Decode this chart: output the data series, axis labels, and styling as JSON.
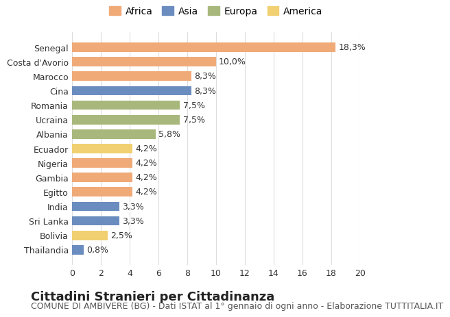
{
  "categories": [
    "Senegal",
    "Costa d'Avorio",
    "Marocco",
    "Cina",
    "Romania",
    "Ucraina",
    "Albania",
    "Ecuador",
    "Nigeria",
    "Gambia",
    "Egitto",
    "India",
    "Sri Lanka",
    "Bolivia",
    "Thailandia"
  ],
  "values": [
    18.3,
    10.0,
    8.3,
    8.3,
    7.5,
    7.5,
    5.8,
    4.2,
    4.2,
    4.2,
    4.2,
    3.3,
    3.3,
    2.5,
    0.8
  ],
  "labels": [
    "18,3%",
    "10,0%",
    "8,3%",
    "8,3%",
    "7,5%",
    "7,5%",
    "5,8%",
    "4,2%",
    "4,2%",
    "4,2%",
    "4,2%",
    "3,3%",
    "3,3%",
    "2,5%",
    "0,8%"
  ],
  "continents": [
    "Africa",
    "Africa",
    "Africa",
    "Asia",
    "Europa",
    "Europa",
    "Europa",
    "America",
    "Africa",
    "Africa",
    "Africa",
    "Asia",
    "Asia",
    "America",
    "Asia"
  ],
  "continent_colors": {
    "Africa": "#F0AA78",
    "Asia": "#6B8CBE",
    "Europa": "#A8B87C",
    "America": "#F0D070"
  },
  "legend_order": [
    "Africa",
    "Asia",
    "Europa",
    "America"
  ],
  "title": "Cittadini Stranieri per Cittadinanza",
  "subtitle": "COMUNE DI AMBIVERE (BG) - Dati ISTAT al 1° gennaio di ogni anno - Elaborazione TUTTITALIA.IT",
  "xlim": [
    0,
    20
  ],
  "xticks": [
    0,
    2,
    4,
    6,
    8,
    10,
    12,
    14,
    16,
    18,
    20
  ],
  "background_color": "#ffffff",
  "grid_color": "#dddddd",
  "bar_height": 0.65,
  "title_fontsize": 13,
  "subtitle_fontsize": 9,
  "label_fontsize": 9,
  "tick_fontsize": 9,
  "legend_fontsize": 10
}
